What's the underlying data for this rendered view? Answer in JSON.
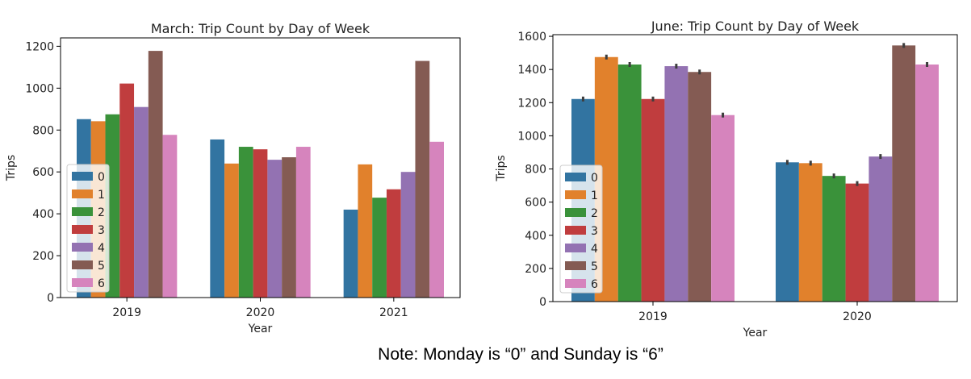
{
  "note": "Note:  Monday is “0” and Sunday is “6”",
  "colors": [
    "#3274a1",
    "#e1812c",
    "#3a923a",
    "#c03d3e",
    "#9372b2",
    "#845b53",
    "#d684bd"
  ],
  "chart_data": [
    {
      "type": "bar",
      "title": "March:  Trip Count by Day of Week",
      "xlabel": "Year",
      "ylabel": "Trips",
      "categories": [
        "2019",
        "2020",
        "2021"
      ],
      "ylim": [
        0,
        1240
      ],
      "yticks": [
        0,
        200,
        400,
        600,
        800,
        1000,
        1200
      ],
      "legend_position": "center-left",
      "series": [
        {
          "name": "0",
          "values": [
            852,
            755,
            420
          ]
        },
        {
          "name": "1",
          "values": [
            842,
            640,
            636
          ]
        },
        {
          "name": "2",
          "values": [
            875,
            720,
            477
          ]
        },
        {
          "name": "3",
          "values": [
            1022,
            708,
            517
          ]
        },
        {
          "name": "4",
          "values": [
            910,
            658,
            600
          ]
        },
        {
          "name": "5",
          "values": [
            1178,
            670,
            1130
          ]
        },
        {
          "name": "6",
          "values": [
            777,
            720,
            744
          ]
        }
      ]
    },
    {
      "type": "bar",
      "title": "June: Trip Count by Day of Week",
      "xlabel": "Year",
      "ylabel": "Trips",
      "categories": [
        "2019",
        "2020"
      ],
      "ylim": [
        0,
        1610
      ],
      "yticks": [
        0,
        200,
        400,
        600,
        800,
        1000,
        1200,
        1400,
        1600
      ],
      "legend_position": "lower-left",
      "error_bars": true,
      "series": [
        {
          "name": "0",
          "values": [
            1222,
            840
          ]
        },
        {
          "name": "1",
          "values": [
            1475,
            835
          ]
        },
        {
          "name": "2",
          "values": [
            1430,
            758
          ]
        },
        {
          "name": "3",
          "values": [
            1222,
            712
          ]
        },
        {
          "name": "4",
          "values": [
            1420,
            875
          ]
        },
        {
          "name": "5",
          "values": [
            1385,
            1545
          ]
        },
        {
          "name": "6",
          "values": [
            1125,
            1430
          ]
        }
      ]
    }
  ]
}
